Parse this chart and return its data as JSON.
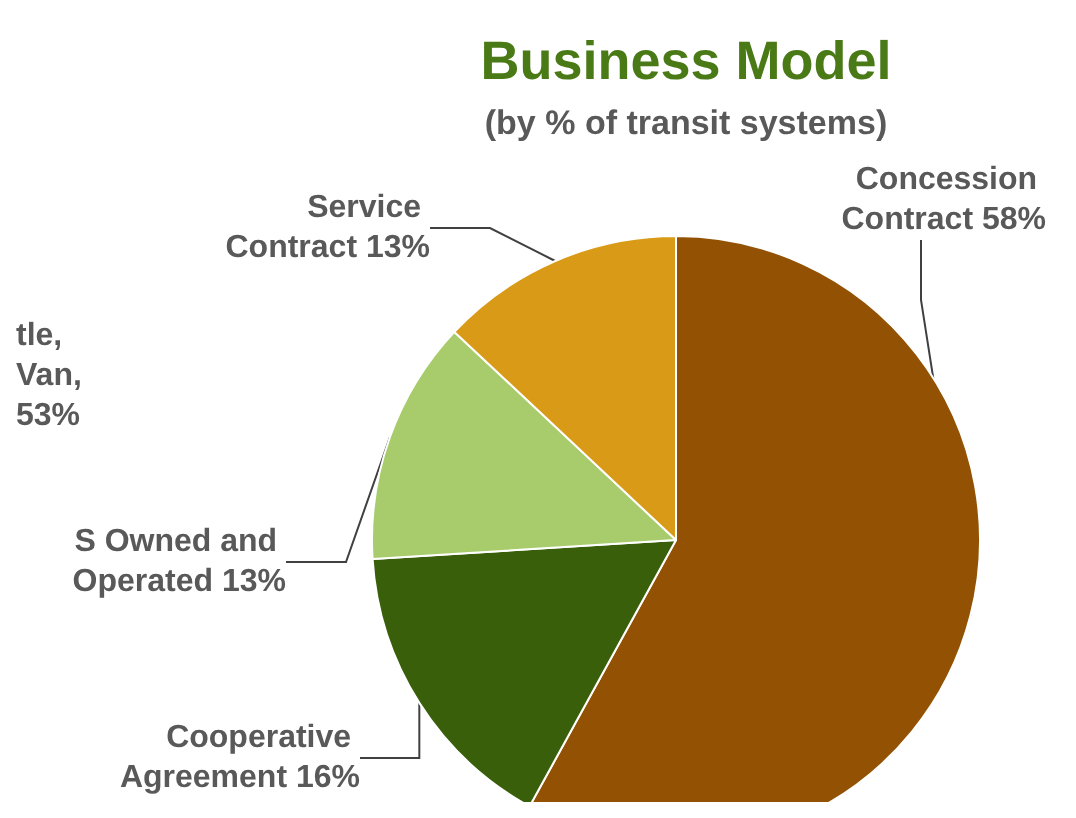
{
  "chart_data": {
    "type": "pie",
    "title": "Business Model",
    "subtitle": "(by % of transit systems)",
    "categories": [
      "Concession Contract",
      "Cooperative Agreement",
      "S Owned and Operated",
      "Service Contract"
    ],
    "values": [
      58,
      16,
      13,
      13
    ],
    "colors": [
      "#935203",
      "#3a5f0b",
      "#a8cc6c",
      "#d99a18"
    ],
    "value_labels": [
      "58%",
      "16%",
      "13%",
      "13%"
    ],
    "annotations": [
      "tle, Van, 53%"
    ],
    "legend": false
  }
}
